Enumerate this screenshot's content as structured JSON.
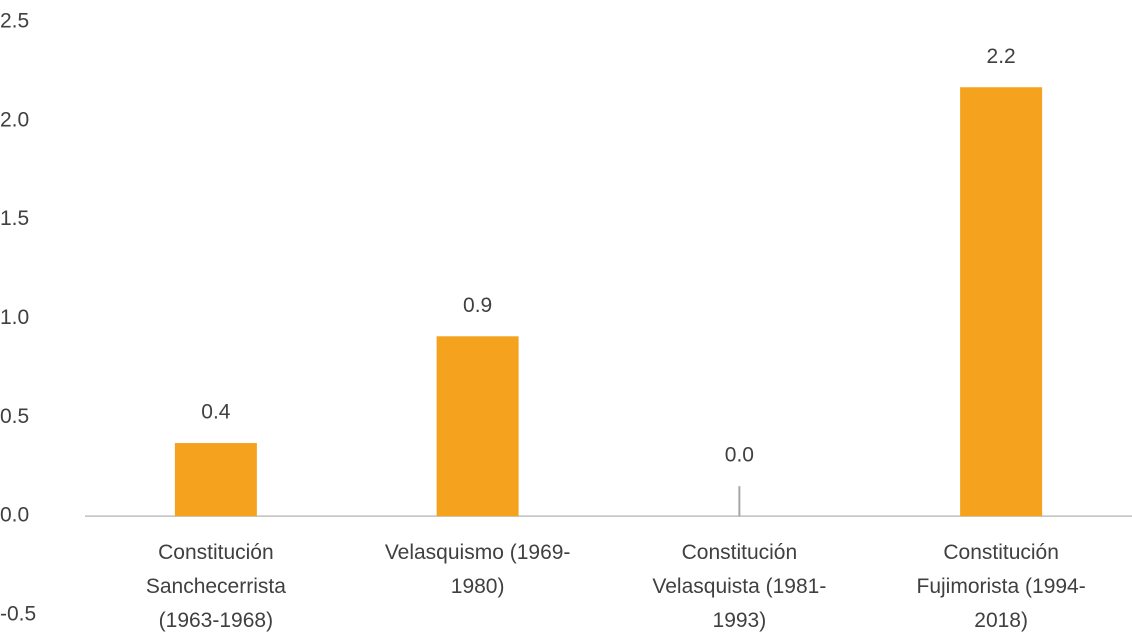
{
  "chart_data": {
    "type": "bar",
    "categories": [
      "Constitución Sanchecerrista (1963-1968)",
      "Velasquismo (1969-1980)",
      "Constitución Velasquista (1981-1993)",
      "Constitución Fujimorista (1994-2018)"
    ],
    "values": [
      0.37,
      0.91,
      0.0,
      2.17
    ],
    "value_labels": [
      "0.4",
      "0.9",
      "0.0",
      "2.2"
    ],
    "color": "#f5a31e",
    "ylim": [
      -0.5,
      2.5
    ],
    "yticks": [
      -0.5,
      {
        "value": 0,
        "label": "0.0"
      },
      0.5,
      {
        "value": 1,
        "label": "1.0"
      },
      1.5,
      {
        "value": 2,
        "label": "2.0"
      },
      2.5
    ],
    "grid": false
  }
}
